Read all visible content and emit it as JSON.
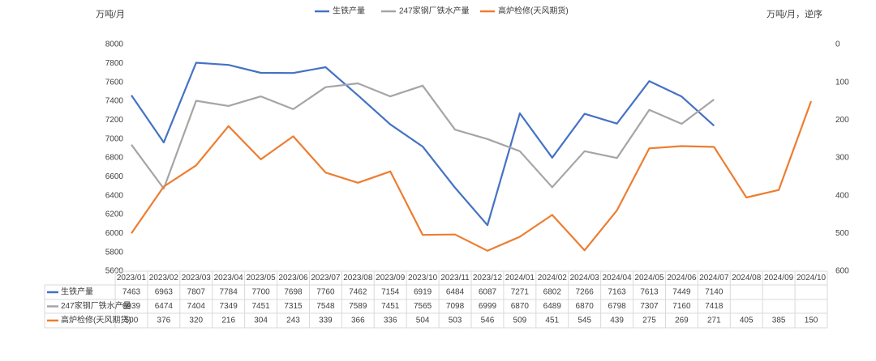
{
  "chart_data": {
    "type": "line",
    "y_label": "万吨/月",
    "y2_label": "万吨/月，逆序",
    "categories": [
      "2023/01",
      "2023/02",
      "2023/03",
      "2023/04",
      "2023/05",
      "2023/06",
      "2023/07",
      "2023/08",
      "2023/09",
      "2023/10",
      "2023/11",
      "2023/12",
      "2024/01",
      "2024/02",
      "2024/03",
      "2024/04",
      "2024/05",
      "2024/06",
      "2024/07",
      "2024/08",
      "2024/09",
      "2024/10"
    ],
    "series": [
      {
        "name": "生铁产量",
        "color": "#4472c4",
        "values": [
          7463,
          6963,
          7807,
          7784,
          7700,
          7698,
          7760,
          7462,
          7154,
          6919,
          6484,
          6087,
          7271,
          6802,
          7266,
          7163,
          7613,
          7449,
          7140,
          null,
          null,
          null
        ]
      },
      {
        "name": "247家钢厂铁水产量",
        "color": "#a5a5a5",
        "values": [
          6939,
          6474,
          7404,
          7349,
          7451,
          7315,
          7548,
          7589,
          7451,
          7565,
          7098,
          6999,
          6870,
          6489,
          6870,
          6798,
          7307,
          7160,
          7418,
          null,
          null,
          null
        ]
      },
      {
        "name": "高炉检修(天风期货)",
        "color": "#ed7d31",
        "axis": "y2",
        "values": [
          500,
          376,
          320,
          216,
          304,
          243,
          339,
          366,
          336,
          504,
          503,
          546,
          509,
          451,
          545,
          439,
          275,
          269,
          271,
          405,
          385,
          150
        ]
      }
    ],
    "ylim": [
      5600,
      8000
    ],
    "yticks": [
      5600,
      5800,
      6000,
      6200,
      6400,
      6600,
      6800,
      7000,
      7200,
      7400,
      7600,
      7800,
      8000
    ],
    "y2lim": [
      0,
      600
    ],
    "y2ticks": [
      0,
      100,
      200,
      300,
      400,
      500,
      600
    ],
    "y2_reversed": true,
    "grid": false,
    "legend": "top",
    "data_table": true
  }
}
